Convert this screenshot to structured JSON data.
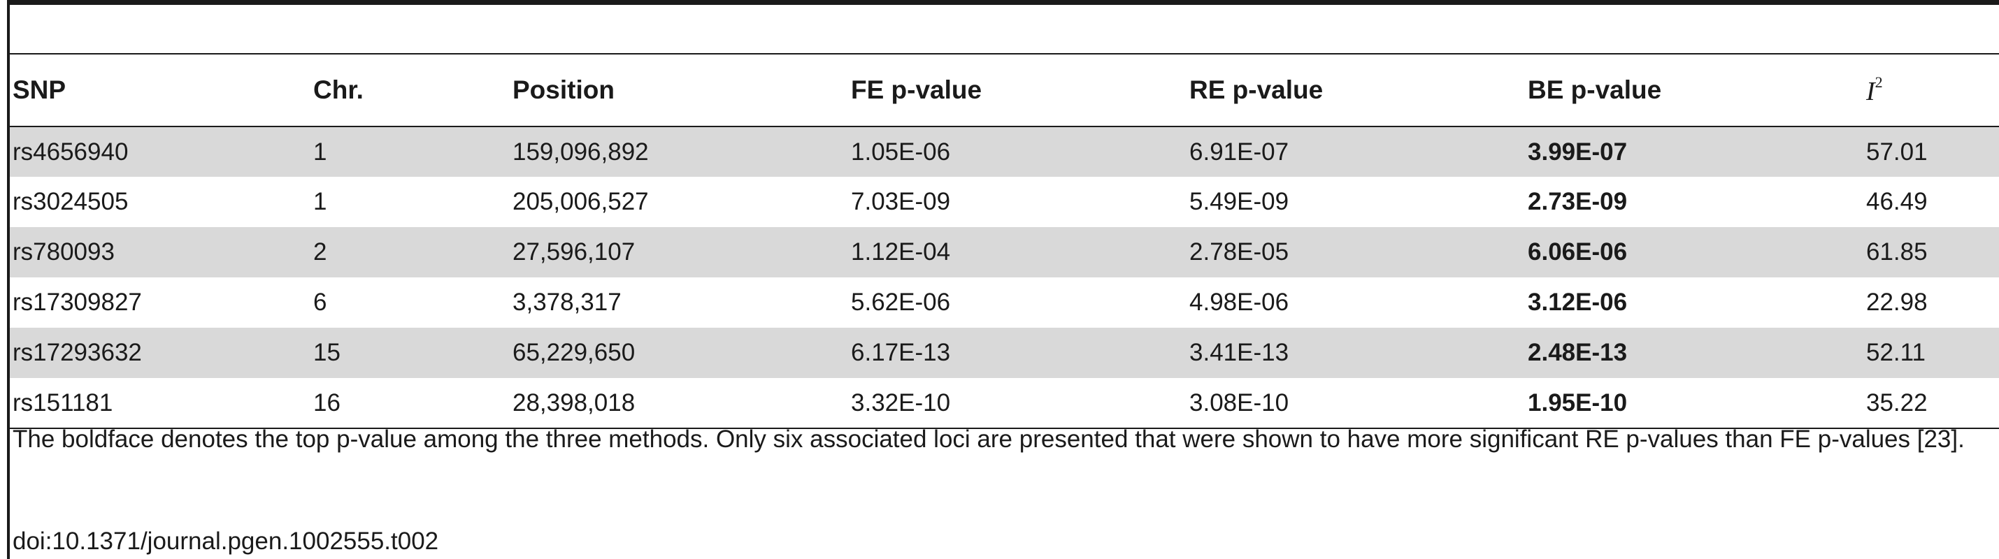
{
  "table": {
    "headers": {
      "snp": "SNP",
      "chr": "Chr.",
      "position": "Position",
      "fe": "FE p-value",
      "re": "RE p-value",
      "be": "BE p-value",
      "i2_base": "I",
      "i2_sup": "2"
    },
    "rows": [
      {
        "snp": "rs4656940",
        "chr": "1",
        "position": "159,096,892",
        "fe": "1.05E-06",
        "re": "6.91E-07",
        "be": "3.99E-07",
        "i2": "57.01"
      },
      {
        "snp": "rs3024505",
        "chr": "1",
        "position": "205,006,527",
        "fe": "7.03E-09",
        "re": "5.49E-09",
        "be": "2.73E-09",
        "i2": "46.49"
      },
      {
        "snp": "rs780093",
        "chr": "2",
        "position": "27,596,107",
        "fe": "1.12E-04",
        "re": "2.78E-05",
        "be": "6.06E-06",
        "i2": "61.85"
      },
      {
        "snp": "rs17309827",
        "chr": "6",
        "position": "3,378,317",
        "fe": "5.62E-06",
        "re": "4.98E-06",
        "be": "3.12E-06",
        "i2": "22.98"
      },
      {
        "snp": "rs17293632",
        "chr": "15",
        "position": "65,229,650",
        "fe": "6.17E-13",
        "re": "3.41E-13",
        "be": "2.48E-13",
        "i2": "52.11"
      },
      {
        "snp": "rs151181",
        "chr": "16",
        "position": "28,398,018",
        "fe": "3.32E-10",
        "re": "3.08E-10",
        "be": "1.95E-10",
        "i2": "35.22"
      }
    ]
  },
  "footnote": {
    "text": "The boldface denotes the top p-value among the three methods. Only six associated loci are presented that were shown to have more significant RE p-values than FE p-values [23].",
    "doi": "doi:10.1371/journal.pgen.1002555.t002"
  }
}
